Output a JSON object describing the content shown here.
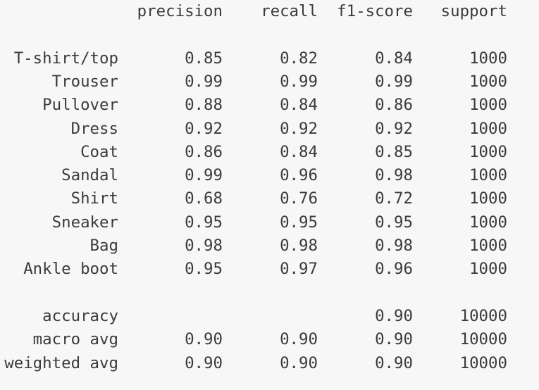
{
  "report": {
    "headers": {
      "precision": "precision",
      "recall": "recall",
      "f1": "f1-score",
      "support": "support"
    },
    "classes": [
      {
        "label": "T-shirt/top",
        "precision": "0.85",
        "recall": "0.82",
        "f1": "0.84",
        "support": "1000"
      },
      {
        "label": "Trouser",
        "precision": "0.99",
        "recall": "0.99",
        "f1": "0.99",
        "support": "1000"
      },
      {
        "label": "Pullover",
        "precision": "0.88",
        "recall": "0.84",
        "f1": "0.86",
        "support": "1000"
      },
      {
        "label": "Dress",
        "precision": "0.92",
        "recall": "0.92",
        "f1": "0.92",
        "support": "1000"
      },
      {
        "label": "Coat",
        "precision": "0.86",
        "recall": "0.84",
        "f1": "0.85",
        "support": "1000"
      },
      {
        "label": "Sandal",
        "precision": "0.99",
        "recall": "0.96",
        "f1": "0.98",
        "support": "1000"
      },
      {
        "label": "Shirt",
        "precision": "0.68",
        "recall": "0.76",
        "f1": "0.72",
        "support": "1000"
      },
      {
        "label": "Sneaker",
        "precision": "0.95",
        "recall": "0.95",
        "f1": "0.95",
        "support": "1000"
      },
      {
        "label": "Bag",
        "precision": "0.98",
        "recall": "0.98",
        "f1": "0.98",
        "support": "1000"
      },
      {
        "label": "Ankle boot",
        "precision": "0.95",
        "recall": "0.97",
        "f1": "0.96",
        "support": "1000"
      }
    ],
    "accuracy": {
      "label": "accuracy",
      "f1": "0.90",
      "support": "10000"
    },
    "macro_avg": {
      "label": "macro avg",
      "precision": "0.90",
      "recall": "0.90",
      "f1": "0.90",
      "support": "10000"
    },
    "weighted_avg": {
      "label": "weighted avg",
      "precision": "0.90",
      "recall": "0.90",
      "f1": "0.90",
      "support": "10000"
    }
  }
}
